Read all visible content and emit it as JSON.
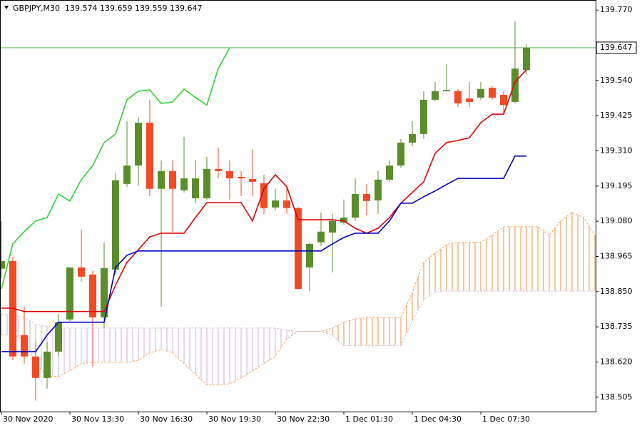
{
  "chart_data": {
    "type": "candlestick",
    "title": "GBPJPY,M30  139.574 139.659 139.559 139.647",
    "categories": [
      "30 Nov 2020",
      null,
      null,
      null,
      null,
      null,
      "30 Nov 13:30",
      null,
      null,
      null,
      null,
      null,
      "30 Nov 16:30",
      null,
      null,
      null,
      null,
      null,
      "30 Nov 19:30",
      null,
      null,
      null,
      null,
      null,
      "30 Nov 22:30",
      null,
      null,
      null,
      null,
      null,
      "1 Dec 01:30",
      null,
      null,
      null,
      null,
      null,
      "1 Dec 04:30",
      null,
      null,
      null,
      null,
      null,
      "1 Dec 07:30",
      null,
      null,
      null,
      null,
      null,
      null,
      null,
      null,
      null,
      null
    ],
    "ohlc": {
      "up_color": "#5b8d2a",
      "down_color": "#f24a25",
      "open": [
        138.925,
        138.95,
        138.708,
        138.638,
        138.568,
        138.654,
        138.759,
        138.929,
        138.906,
        138.766,
        138.922,
        139.202,
        139.262,
        139.402,
        139.186,
        139.244,
        139.181,
        139.155,
        139.155,
        139.251,
        139.244,
        139.225,
        139.218,
        139.204,
        139.125,
        139.148,
        139.123,
        138.929,
        139.011,
        139.043,
        139.076,
        139.092,
        139.169,
        139.148,
        139.216,
        139.262,
        139.337,
        139.365,
        139.477,
        139.505,
        139.505,
        139.481,
        139.484,
        139.516,
        139.493,
        139.47,
        139.574,
        null,
        null,
        null,
        null,
        null,
        null
      ],
      "high": [
        139.081,
        138.964,
        138.801,
        138.685,
        138.685,
        138.778,
        138.929,
        139.053,
        138.918,
        139.011,
        139.237,
        139.407,
        139.419,
        139.477,
        139.279,
        139.279,
        139.356,
        139.279,
        139.29,
        139.321,
        139.279,
        139.244,
        139.314,
        139.232,
        139.186,
        139.193,
        139.127,
        139.011,
        139.109,
        139.104,
        139.151,
        139.22,
        139.202,
        139.244,
        139.279,
        139.349,
        139.407,
        139.505,
        139.535,
        139.593,
        139.512,
        139.535,
        139.535,
        139.523,
        139.505,
        139.733,
        139.659,
        null,
        null,
        null,
        null,
        null,
        null
      ],
      "low": [
        138.894,
        138.626,
        138.615,
        138.494,
        138.533,
        138.638,
        138.754,
        138.883,
        138.603,
        138.731,
        138.906,
        139.193,
        139.197,
        139.162,
        138.801,
        139.046,
        139.174,
        139.139,
        139.151,
        139.22,
        139.151,
        139.162,
        139.162,
        139.104,
        139.116,
        139.104,
        138.859,
        138.852,
        138.999,
        138.913,
        139.069,
        139.081,
        139.099,
        139.104,
        139.209,
        139.255,
        139.325,
        139.349,
        139.472,
        139.505,
        139.453,
        139.453,
        139.477,
        139.477,
        139.43,
        139.465,
        139.559,
        null,
        null,
        null,
        null,
        null,
        null
      ],
      "close": [
        138.95,
        138.638,
        138.638,
        138.568,
        138.654,
        138.75,
        138.929,
        138.899,
        138.766,
        138.927,
        139.214,
        139.262,
        139.402,
        139.186,
        139.244,
        139.186,
        139.22,
        139.22,
        139.251,
        139.244,
        139.22,
        139.22,
        139.209,
        139.123,
        139.148,
        139.123,
        138.859,
        139.006,
        139.046,
        139.081,
        139.092,
        139.169,
        139.146,
        139.216,
        139.262,
        139.337,
        139.365,
        139.477,
        139.505,
        139.509,
        139.465,
        139.47,
        139.512,
        139.484,
        139.46,
        139.579,
        139.647,
        null,
        null,
        null,
        null,
        null,
        null
      ]
    },
    "lines": [
      {
        "color": "#e00000",
        "values": [
          138.796,
          138.796,
          138.785,
          138.785,
          138.785,
          138.785,
          138.785,
          138.785,
          138.785,
          138.785,
          138.871,
          138.946,
          138.987,
          139.029,
          139.041,
          139.041,
          139.041,
          139.092,
          139.141,
          139.141,
          139.141,
          139.141,
          139.081,
          139.186,
          139.232,
          139.193,
          139.085,
          139.085,
          139.085,
          139.085,
          139.081,
          139.057,
          139.041,
          139.057,
          139.092,
          139.139,
          139.174,
          139.209,
          139.302,
          139.337,
          139.344,
          139.353,
          139.402,
          139.43,
          139.43,
          139.535,
          139.575,
          null,
          null,
          null,
          null,
          null,
          null
        ]
      },
      {
        "color": "#0000c0",
        "values": [
          138.654,
          138.654,
          138.654,
          138.654,
          138.708,
          138.75,
          138.75,
          138.75,
          138.75,
          138.75,
          138.929,
          138.969,
          138.983,
          138.983,
          138.983,
          138.983,
          138.983,
          138.983,
          138.983,
          138.983,
          138.983,
          138.983,
          138.983,
          138.983,
          138.983,
          138.983,
          138.983,
          138.983,
          138.983,
          139.006,
          139.027,
          139.041,
          139.041,
          139.041,
          139.081,
          139.139,
          139.139,
          139.16,
          139.179,
          139.2,
          139.22,
          139.22,
          139.22,
          139.22,
          139.22,
          139.293,
          139.293,
          null,
          null,
          null,
          null,
          null,
          null
        ]
      },
      {
        "color": "#2fd22f",
        "values": [
          138.859,
          139.006,
          139.046,
          139.081,
          139.092,
          139.169,
          139.146,
          139.216,
          139.262,
          139.337,
          139.365,
          139.477,
          139.505,
          139.509,
          139.465,
          139.47,
          139.512,
          139.484,
          139.46,
          139.579,
          139.647,
          null,
          null,
          null,
          null,
          null,
          null,
          null,
          null,
          null,
          null,
          null,
          null,
          null,
          null,
          null,
          null,
          null,
          null,
          null,
          null,
          null,
          null,
          null,
          null,
          null,
          null,
          null,
          null,
          null,
          null,
          null,
          null
        ]
      }
    ],
    "cloud": {
      "span_a": {
        "color": "#f4a460",
        "values": [
          138.708,
          138.708,
          138.696,
          138.615,
          138.573,
          138.573,
          138.591,
          138.615,
          138.619,
          138.619,
          138.619,
          138.619,
          138.626,
          138.65,
          138.661,
          138.65,
          138.615,
          138.58,
          138.545,
          138.545,
          138.549,
          138.568,
          138.591,
          138.615,
          138.638,
          138.696,
          138.72,
          138.72,
          138.72,
          138.731,
          138.75,
          138.761,
          138.766,
          138.766,
          138.766,
          138.766,
          138.848,
          138.946,
          138.976,
          139.004,
          139.011,
          139.011,
          139.011,
          139.034,
          139.062,
          139.062,
          139.062,
          139.062,
          139.034,
          139.081,
          139.109,
          139.092,
          139.034
        ]
      },
      "span_b": {
        "color": "#d8bfd8",
        "values": [
          138.778,
          138.773,
          138.766,
          138.743,
          138.736,
          138.731,
          138.731,
          138.731,
          138.731,
          138.731,
          138.731,
          138.731,
          138.731,
          138.731,
          138.731,
          138.731,
          138.731,
          138.731,
          138.731,
          138.731,
          138.731,
          138.731,
          138.731,
          138.731,
          138.731,
          138.724,
          138.72,
          138.72,
          138.72,
          138.708,
          138.673,
          138.673,
          138.673,
          138.673,
          138.673,
          138.673,
          138.754,
          138.824,
          138.848,
          138.852,
          138.852,
          138.852,
          138.852,
          138.852,
          138.852,
          138.852,
          138.852,
          138.852,
          138.852,
          138.852,
          138.852,
          138.852,
          138.852
        ]
      }
    },
    "bid": {
      "value": 139.647,
      "label": "139.647",
      "color": "#3aa83a"
    },
    "ylim": [
      138.458,
      139.803
    ],
    "yticks": [
      {
        "value": 138.505,
        "label": "138.505"
      },
      {
        "value": 138.62,
        "label": "138.620"
      },
      {
        "value": 138.735,
        "label": "138.735"
      },
      {
        "value": 138.85,
        "label": "138.850"
      },
      {
        "value": 138.965,
        "label": "138.965"
      },
      {
        "value": 139.08,
        "label": "139.080"
      },
      {
        "value": 139.195,
        "label": "139.195"
      },
      {
        "value": 139.31,
        "label": "139.310"
      },
      {
        "value": 139.425,
        "label": "139.425"
      },
      {
        "value": 139.54,
        "label": "139.540"
      },
      {
        "value": 139.77,
        "label": "139.770"
      }
    ]
  }
}
